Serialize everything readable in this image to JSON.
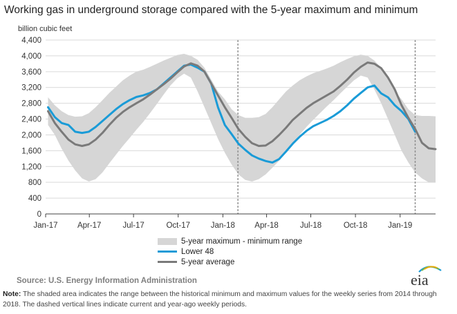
{
  "title": "Working gas in underground  storage compared with the 5-year maximum and minimum",
  "chart_data": {
    "type": "area",
    "ylabel": "billion cubic feet",
    "ylim": [
      0,
      4400
    ],
    "yticks": [
      0,
      400,
      800,
      1200,
      1600,
      2000,
      2400,
      2800,
      3200,
      3600,
      4000,
      4400
    ],
    "xlim": [
      "2017-01-01",
      "2019-03-15"
    ],
    "xticks": [
      {
        "date": "2017-01-01",
        "label": "Jan-17"
      },
      {
        "date": "2017-04-01",
        "label": "Apr-17"
      },
      {
        "date": "2017-07-01",
        "label": "Jul-17"
      },
      {
        "date": "2017-10-01",
        "label": "Oct-17"
      },
      {
        "date": "2018-01-01",
        "label": "Jan-18"
      },
      {
        "date": "2018-04-01",
        "label": "Apr-18"
      },
      {
        "date": "2018-07-01",
        "label": "Jul-18"
      },
      {
        "date": "2018-10-01",
        "label": "Oct-18"
      },
      {
        "date": "2019-01-01",
        "label": "Jan-19"
      }
    ],
    "grid": "horizontal",
    "legend_position": "bottom",
    "reference_lines": [
      "2018-02-01",
      "2019-02-01"
    ],
    "range": {
      "name": "5-year maximum - minimum range",
      "color": "#d6d6d6",
      "x": [
        "2017-01-06",
        "2017-01-20",
        "2017-02-03",
        "2017-02-17",
        "2017-03-03",
        "2017-03-17",
        "2017-03-31",
        "2017-04-14",
        "2017-04-28",
        "2017-05-12",
        "2017-05-26",
        "2017-06-09",
        "2017-06-23",
        "2017-07-07",
        "2017-07-21",
        "2017-08-04",
        "2017-08-18",
        "2017-09-01",
        "2017-09-15",
        "2017-09-29",
        "2017-10-13",
        "2017-10-27",
        "2017-11-10",
        "2017-11-24",
        "2017-12-08",
        "2017-12-22",
        "2018-01-05",
        "2018-01-19",
        "2018-02-02",
        "2018-02-16",
        "2018-03-02",
        "2018-03-16",
        "2018-03-30",
        "2018-04-13",
        "2018-04-27",
        "2018-05-11",
        "2018-05-25",
        "2018-06-08",
        "2018-06-22",
        "2018-07-06",
        "2018-07-20",
        "2018-08-03",
        "2018-08-17",
        "2018-08-31",
        "2018-09-14",
        "2018-09-28",
        "2018-10-12",
        "2018-10-26",
        "2018-11-09",
        "2018-11-23",
        "2018-12-07",
        "2018-12-21",
        "2019-01-04",
        "2019-01-18",
        "2019-02-01",
        "2019-02-15",
        "2019-03-01",
        "2019-03-15"
      ],
      "max": [
        2950,
        2750,
        2600,
        2500,
        2460,
        2470,
        2550,
        2700,
        2880,
        3060,
        3220,
        3380,
        3500,
        3600,
        3650,
        3720,
        3800,
        3880,
        3950,
        4020,
        4050,
        4000,
        3900,
        3700,
        3400,
        3100,
        2900,
        2650,
        2500,
        2430,
        2430,
        2450,
        2530,
        2700,
        2900,
        3100,
        3250,
        3380,
        3480,
        3560,
        3620,
        3680,
        3750,
        3840,
        3920,
        3990,
        4030,
        4000,
        3880,
        3700,
        3400,
        3100,
        2900,
        2650,
        2500,
        2480,
        2480,
        2470
      ],
      "min": [
        2250,
        2000,
        1650,
        1350,
        1100,
        900,
        820,
        880,
        1050,
        1280,
        1500,
        1720,
        1920,
        2130,
        2330,
        2550,
        2780,
        3020,
        3250,
        3430,
        3550,
        3450,
        3100,
        2700,
        2300,
        1900,
        1550,
        1250,
        1000,
        860,
        820,
        880,
        1000,
        1170,
        1350,
        1550,
        1780,
        2000,
        2200,
        2380,
        2550,
        2720,
        2880,
        3050,
        3220,
        3380,
        3500,
        3450,
        3150,
        2800,
        2400,
        2000,
        1600,
        1300,
        1050,
        900,
        800,
        800
      ]
    },
    "series": [
      {
        "name": "Lower 48",
        "color": "#1a9bd7",
        "x": [
          "2017-01-06",
          "2017-01-20",
          "2017-02-03",
          "2017-02-17",
          "2017-03-03",
          "2017-03-17",
          "2017-03-31",
          "2017-04-14",
          "2017-04-28",
          "2017-05-12",
          "2017-05-26",
          "2017-06-09",
          "2017-06-23",
          "2017-07-07",
          "2017-07-21",
          "2017-08-04",
          "2017-08-18",
          "2017-09-01",
          "2017-09-15",
          "2017-09-29",
          "2017-10-13",
          "2017-10-27",
          "2017-11-10",
          "2017-11-24",
          "2017-12-08",
          "2017-12-22",
          "2018-01-05",
          "2018-01-19",
          "2018-02-02",
          "2018-02-16",
          "2018-03-02",
          "2018-03-16",
          "2018-03-30",
          "2018-04-13",
          "2018-04-27",
          "2018-05-11",
          "2018-05-25",
          "2018-06-08",
          "2018-06-22",
          "2018-07-06",
          "2018-07-20",
          "2018-08-03",
          "2018-08-17",
          "2018-08-31",
          "2018-09-14",
          "2018-09-28",
          "2018-10-12",
          "2018-10-26",
          "2018-11-09",
          "2018-11-23",
          "2018-12-07",
          "2018-12-21",
          "2019-01-04",
          "2019-01-18",
          "2019-02-01"
        ],
        "values": [
          2700,
          2450,
          2300,
          2250,
          2080,
          2050,
          2080,
          2200,
          2350,
          2500,
          2650,
          2780,
          2880,
          2960,
          3000,
          3060,
          3150,
          3300,
          3450,
          3600,
          3750,
          3780,
          3700,
          3600,
          3300,
          2700,
          2250,
          2020,
          1780,
          1620,
          1480,
          1400,
          1340,
          1300,
          1390,
          1580,
          1780,
          1950,
          2100,
          2220,
          2300,
          2380,
          2480,
          2600,
          2750,
          2920,
          3060,
          3200,
          3250,
          3050,
          2950,
          2750,
          2600,
          2400,
          2080
        ]
      },
      {
        "name": "5-year average",
        "color": "#7a7a7a",
        "x": [
          "2017-01-06",
          "2017-01-20",
          "2017-02-03",
          "2017-02-17",
          "2017-03-03",
          "2017-03-17",
          "2017-03-31",
          "2017-04-14",
          "2017-04-28",
          "2017-05-12",
          "2017-05-26",
          "2017-06-09",
          "2017-06-23",
          "2017-07-07",
          "2017-07-21",
          "2017-08-04",
          "2017-08-18",
          "2017-09-01",
          "2017-09-15",
          "2017-09-29",
          "2017-10-13",
          "2017-10-27",
          "2017-11-10",
          "2017-11-24",
          "2017-12-08",
          "2017-12-22",
          "2018-01-05",
          "2018-01-19",
          "2018-02-02",
          "2018-02-16",
          "2018-03-02",
          "2018-03-16",
          "2018-03-30",
          "2018-04-13",
          "2018-04-27",
          "2018-05-11",
          "2018-05-25",
          "2018-06-08",
          "2018-06-22",
          "2018-07-06",
          "2018-07-20",
          "2018-08-03",
          "2018-08-17",
          "2018-08-31",
          "2018-09-14",
          "2018-09-28",
          "2018-10-12",
          "2018-10-26",
          "2018-11-09",
          "2018-11-23",
          "2018-12-07",
          "2018-12-21",
          "2019-01-04",
          "2019-01-18",
          "2019-02-01",
          "2019-02-15",
          "2019-03-01",
          "2019-03-15"
        ],
        "values": [
          2600,
          2300,
          2080,
          1880,
          1760,
          1720,
          1760,
          1880,
          2050,
          2250,
          2430,
          2580,
          2700,
          2800,
          2900,
          3020,
          3150,
          3280,
          3420,
          3580,
          3730,
          3810,
          3750,
          3600,
          3300,
          3000,
          2700,
          2430,
          2150,
          1950,
          1790,
          1720,
          1730,
          1840,
          2000,
          2180,
          2380,
          2530,
          2680,
          2800,
          2900,
          3000,
          3100,
          3240,
          3400,
          3580,
          3720,
          3830,
          3800,
          3690,
          3450,
          3150,
          2750,
          2430,
          2150,
          1800,
          1660,
          1640
        ]
      }
    ]
  },
  "legend": {
    "range": "5-year maximum - minimum range",
    "lower48": "Lower 48",
    "average": "5-year average"
  },
  "source": "Source:  U.S. Energy Information Administration",
  "note": {
    "label": "Note:",
    "text": " The shaded area indicates the range between the historical minimum and maximum values for the weekly series from 2014 through 2018. The dashed vertical lines indicate current and year-ago weekly periods."
  },
  "logo": {
    "text": "eia",
    "icon": "eia-logo-icon"
  }
}
